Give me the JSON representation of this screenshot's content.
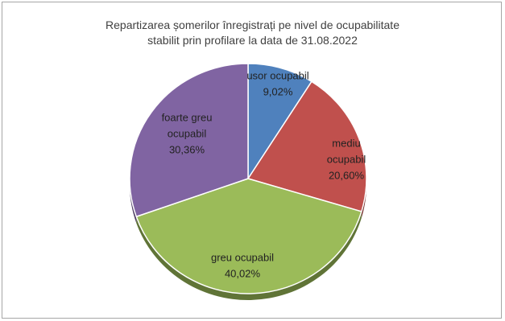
{
  "chart_data": {
    "type": "pie",
    "title_lines": [
      "Repartizarea șomerilor înregistrați pe nivel de ocupabilitate",
      "stabilit prin profilare la data de 31.08.2022"
    ],
    "slices": [
      {
        "label_lines": [
          "usor ocupabil"
        ],
        "value_text": "9,02%",
        "value": 9.02,
        "color": "#4f81bd"
      },
      {
        "label_lines": [
          "mediu",
          "ocupabil"
        ],
        "value_text": "20,60%",
        "value": 20.6,
        "color": "#c0504d"
      },
      {
        "label_lines": [
          "greu ocupabil"
        ],
        "value_text": "40,02%",
        "value": 40.02,
        "color": "#9bbb59"
      },
      {
        "label_lines": [
          "foarte greu",
          "ocupabil"
        ],
        "value_text": "30,36%",
        "value": 30.36,
        "color": "#8064a2"
      }
    ],
    "start_angle_deg": 0,
    "direction": "clockwise",
    "style": "3d-tilted",
    "legend": "none"
  }
}
